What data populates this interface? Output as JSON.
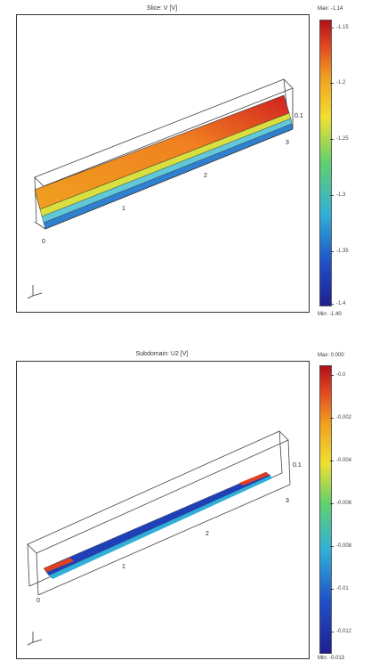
{
  "plots": [
    {
      "title": "Slice: V [V]",
      "max_label": "Max: -1.14",
      "min_label": "Min: -1.40",
      "colorbar_ticks": [
        "-1.15",
        "-1.2",
        "-1.25",
        "-1.3",
        "-1.35",
        "-1.4"
      ],
      "axis_ticks": [
        "0",
        "1",
        "2",
        "3",
        "0.1"
      ],
      "colormap": [
        "#1f1f8f",
        "#2050c8",
        "#30b0d8",
        "#60d070",
        "#f0e030",
        "#f0a020",
        "#e04020",
        "#b01018"
      ]
    },
    {
      "title": "Subdomain: U2 [V]",
      "max_label": "Max: 0.000",
      "min_label": "Min: -0.013",
      "colorbar_ticks": [
        "-0.0",
        "-0.002",
        "-0.004",
        "-0.006",
        "-0.008",
        "-0.01",
        "-0.012"
      ],
      "axis_ticks": [
        "0",
        "1",
        "2",
        "3",
        "0.1"
      ],
      "colormap": [
        "#1f1f8f",
        "#2050c8",
        "#30b0d8",
        "#60d070",
        "#f0e030",
        "#f0a020",
        "#e04020",
        "#b01018"
      ]
    }
  ]
}
